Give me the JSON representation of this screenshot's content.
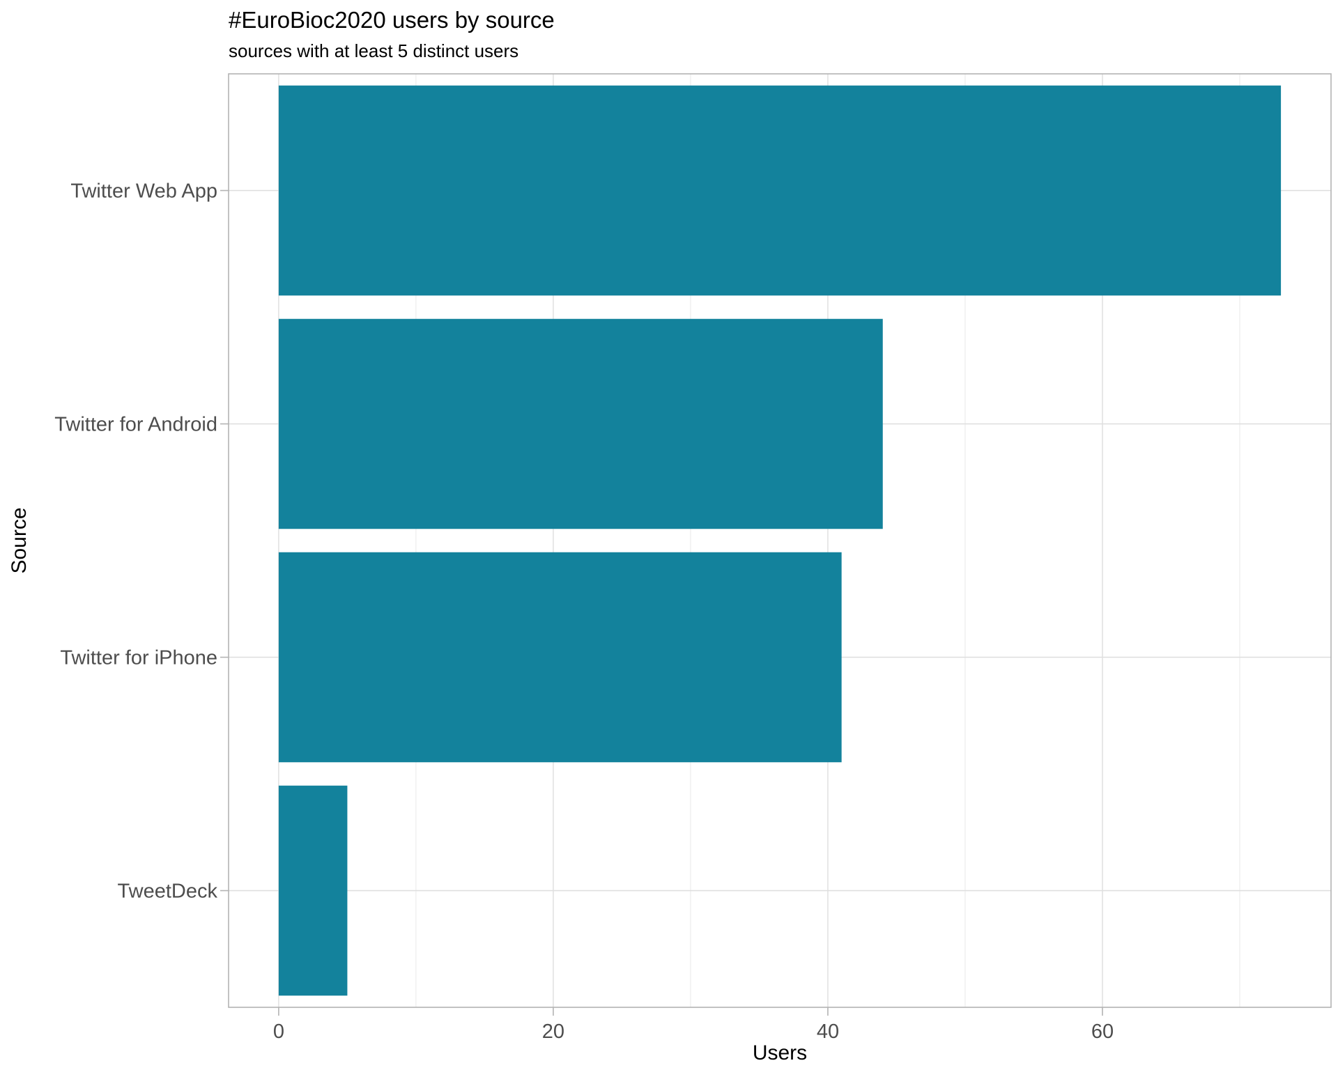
{
  "chart_data": {
    "type": "bar",
    "orientation": "horizontal",
    "title": "#EuroBioc2020 users by source",
    "subtitle": "sources with at least 5 distinct users",
    "xlabel": "Users",
    "ylabel": "Source",
    "categories": [
      "Twitter Web App",
      "Twitter for Android",
      "Twitter for iPhone",
      "TweetDeck"
    ],
    "values": [
      73,
      44,
      41,
      5
    ],
    "xlim": [
      -3.65,
      76.65
    ],
    "x_ticks": [
      0,
      20,
      40,
      60
    ],
    "x_minor_ticks": [
      10,
      30,
      50,
      70
    ],
    "bar_color": "#13829C",
    "grid": true,
    "legend": "none"
  }
}
